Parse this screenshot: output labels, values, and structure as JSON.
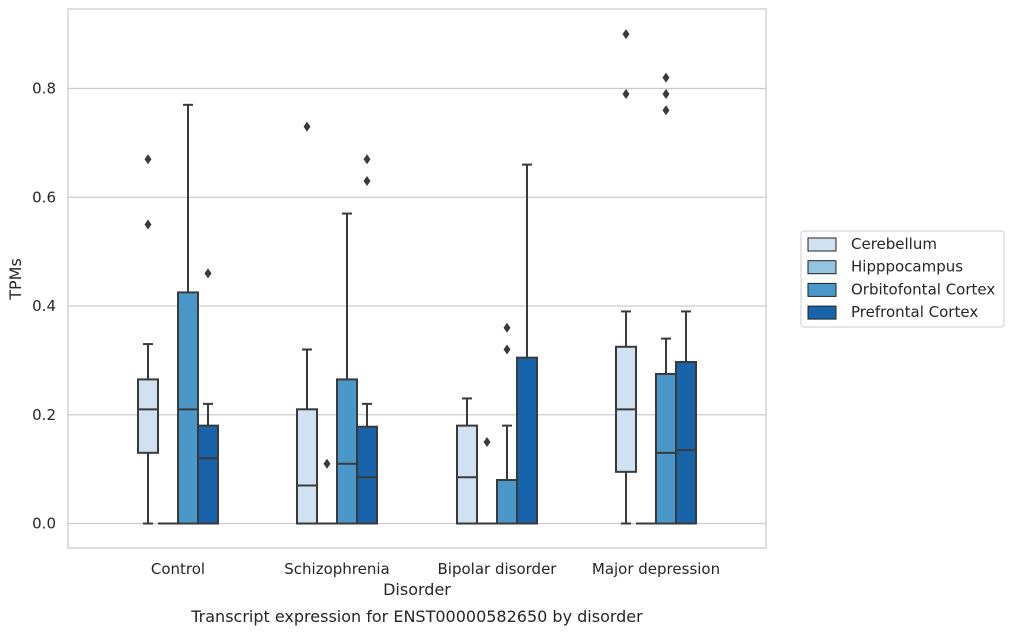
{
  "chart_data": {
    "type": "box",
    "title": "",
    "caption": "Transcript expression for ENST00000582650 by disorder",
    "xlabel": "Disorder",
    "ylabel": "TPMs",
    "ylim": [
      -0.04,
      0.95
    ],
    "yticks": [
      0.0,
      0.2,
      0.4,
      0.6,
      0.8
    ],
    "ytick_labels": [
      "0.0",
      "0.2",
      "0.4",
      "0.6",
      "0.8"
    ],
    "grid": "horizontal",
    "legend_position": "right",
    "categories": [
      "Control",
      "Schizophrenia",
      "Bipolar disorder",
      "Major depression"
    ],
    "series": [
      {
        "name": "Cerebellum",
        "color": "#d0e1f2",
        "boxes": [
          {
            "q1": 0.13,
            "median": 0.21,
            "q3": 0.265,
            "whisker_low": 0.0,
            "whisker_high": 0.33,
            "outliers": [
              0.55,
              0.67
            ]
          },
          {
            "q1": 0.0,
            "median": 0.07,
            "q3": 0.21,
            "whisker_low": 0.0,
            "whisker_high": 0.32,
            "outliers": [
              0.73
            ]
          },
          {
            "q1": 0.0,
            "median": 0.085,
            "q3": 0.18,
            "whisker_low": 0.0,
            "whisker_high": 0.23,
            "outliers": []
          },
          {
            "q1": 0.095,
            "median": 0.21,
            "q3": 0.325,
            "whisker_low": 0.0,
            "whisker_high": 0.39,
            "outliers": [
              0.79,
              0.9
            ]
          }
        ]
      },
      {
        "name": "Hipppocampus",
        "color": "#94c4df",
        "boxes": [
          {
            "q1": 0.0,
            "median": 0.0,
            "q3": 0.0,
            "whisker_low": 0.0,
            "whisker_high": 0.0,
            "outliers": []
          },
          {
            "q1": 0.0,
            "median": 0.0,
            "q3": 0.0,
            "whisker_low": 0.0,
            "whisker_high": 0.0,
            "outliers": [
              0.11
            ]
          },
          {
            "q1": 0.0,
            "median": 0.0,
            "q3": 0.0,
            "whisker_low": 0.0,
            "whisker_high": 0.0,
            "outliers": [
              0.15
            ]
          },
          {
            "q1": 0.0,
            "median": 0.0,
            "q3": 0.0,
            "whisker_low": 0.0,
            "whisker_high": 0.0,
            "outliers": []
          }
        ]
      },
      {
        "name": "Orbitofontal Cortex",
        "color": "#4a98c9",
        "boxes": [
          {
            "q1": 0.0,
            "median": 0.21,
            "q3": 0.425,
            "whisker_low": 0.0,
            "whisker_high": 0.77,
            "outliers": []
          },
          {
            "q1": 0.0,
            "median": 0.11,
            "q3": 0.265,
            "whisker_low": 0.0,
            "whisker_high": 0.57,
            "outliers": []
          },
          {
            "q1": 0.0,
            "median": 0.0,
            "q3": 0.08,
            "whisker_low": 0.0,
            "whisker_high": 0.18,
            "outliers": [
              0.32,
              0.36
            ]
          },
          {
            "q1": 0.0,
            "median": 0.13,
            "q3": 0.275,
            "whisker_low": 0.0,
            "whisker_high": 0.34,
            "outliers": [
              0.76,
              0.79,
              0.82
            ]
          }
        ]
      },
      {
        "name": "Prefrontal Cortex",
        "color": "#1764ab",
        "boxes": [
          {
            "q1": 0.0,
            "median": 0.12,
            "q3": 0.18,
            "whisker_low": 0.0,
            "whisker_high": 0.22,
            "outliers": [
              0.46
            ]
          },
          {
            "q1": 0.0,
            "median": 0.085,
            "q3": 0.178,
            "whisker_low": 0.0,
            "whisker_high": 0.22,
            "outliers": [
              0.63,
              0.67
            ]
          },
          {
            "q1": 0.0,
            "median": 0.0,
            "q3": 0.305,
            "whisker_low": 0.0,
            "whisker_high": 0.66,
            "outliers": []
          },
          {
            "q1": 0.0,
            "median": 0.135,
            "q3": 0.297,
            "whisker_low": 0.0,
            "whisker_high": 0.39,
            "outliers": []
          }
        ]
      }
    ]
  }
}
